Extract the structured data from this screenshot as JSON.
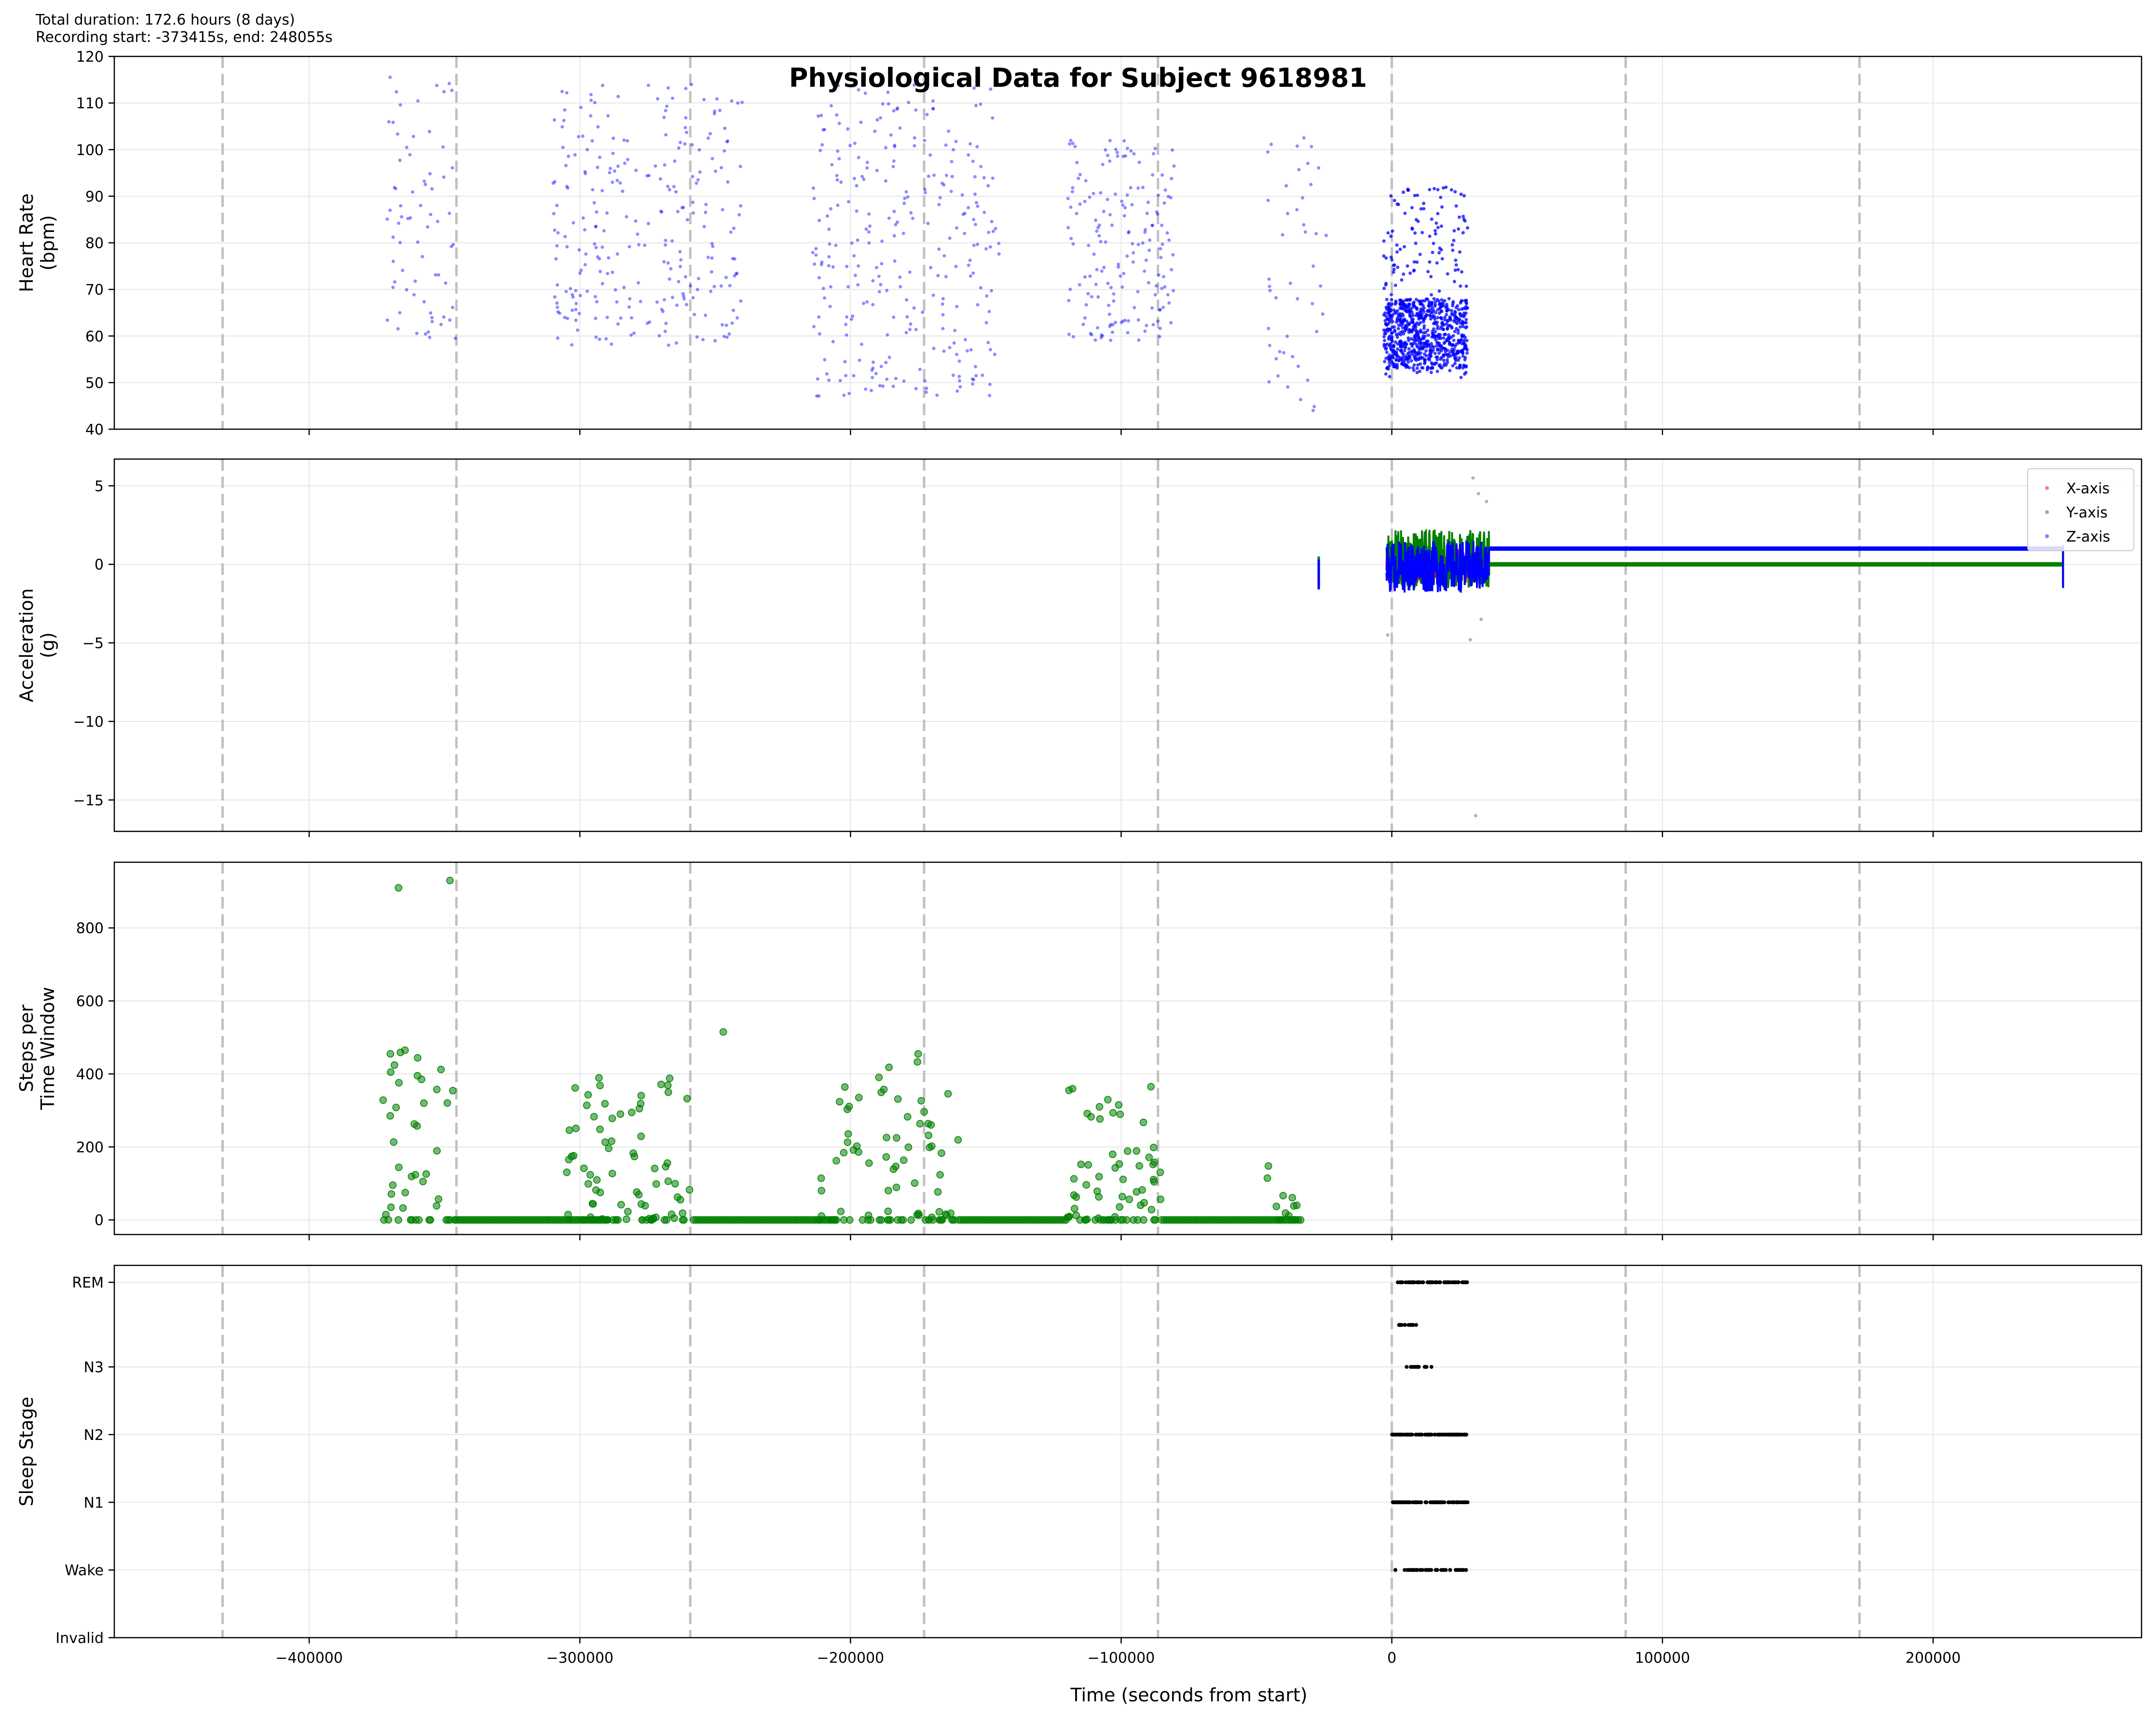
{
  "figure": {
    "title": "Physiological Data for Subject 9618981",
    "info_lines": [
      "Total duration: 172.6 hours (8 days)",
      "Recording start: -373415s, end: 248055s"
    ],
    "xlabel": "Time (seconds from start)",
    "x_ticks": [
      -400000,
      -300000,
      -200000,
      -100000,
      0,
      100000,
      200000
    ],
    "x_tick_labels": [
      "−400000",
      "−300000",
      "−200000",
      "−100000",
      "0",
      "100000",
      "200000"
    ],
    "xlim": [
      -472000,
      277000
    ],
    "day_lines": [
      -432000,
      -345600,
      -259200,
      -172800,
      -86400,
      0,
      86400,
      172800
    ],
    "colors": {
      "heart_rate": "#0000ff",
      "steps": "#008000",
      "x_axis": "#ff0000",
      "y_axis": "#008000",
      "z_axis": "#0000ff",
      "sleep": "#000000",
      "day_line": "#c0c0c0",
      "grid": "#e6e6e6"
    }
  },
  "chart_data": [
    {
      "id": "heart_rate",
      "type": "scatter",
      "ylabel": [
        "Heart Rate",
        "(bpm)"
      ],
      "ylim": [
        40,
        120
      ],
      "y_ticks": [
        40,
        50,
        60,
        70,
        80,
        90,
        100,
        110,
        120
      ],
      "y_tick_labels": [
        "40",
        "50",
        "60",
        "70",
        "80",
        "90",
        "100",
        "110",
        "120"
      ],
      "grid": true,
      "series": [
        {
          "color": "#0000ff",
          "clusters": [
            {
              "x": [
                -372000,
                -346000
              ],
              "ymin": 59,
              "ymax": 116,
              "n": 70
            },
            {
              "x": [
                -310000,
                -240000
              ],
              "ymin": 58,
              "ymax": 114,
              "n": 260
            },
            {
              "x": [
                -214000,
                -145000
              ],
              "ymin": 47,
              "ymax": 114,
              "n": 280
            },
            {
              "x": [
                -120000,
                -80000
              ],
              "ymin": 59,
              "ymax": 102,
              "n": 170
            },
            {
              "x": [
                -46000,
                -24000
              ],
              "ymin": 43,
              "ymax": 103,
              "n": 45
            },
            {
              "x": [
                -3000,
                28000
              ],
              "ymin": 51,
              "ymax": 92,
              "n": 900,
              "core": [
                53,
                68
              ]
            }
          ]
        }
      ]
    },
    {
      "id": "acceleration",
      "type": "line",
      "ylabel": [
        "Acceleration",
        "(g)"
      ],
      "ylim": [
        -17,
        6.7
      ],
      "y_ticks": [
        -15,
        -10,
        -5,
        0,
        5
      ],
      "y_tick_labels": [
        "−15",
        "−10",
        "−5",
        "0",
        "5"
      ],
      "grid": true,
      "legend": "top-right",
      "series": [
        {
          "name": "X-axis",
          "color": "#ff0000",
          "segments": [
            {
              "x": [
                -27000,
                -27000
              ],
              "y": [
                -1.5,
                0.5
              ]
            },
            {
              "x": [
                -2000,
                36000
              ],
              "y": [
                -1.2,
                1.0
              ]
            },
            {
              "x": [
                36000,
                248000
              ],
              "y": [
                0.0,
                0.0
              ]
            }
          ]
        },
        {
          "name": "Y-axis",
          "color": "#008000",
          "segments": [
            {
              "x": [
                -27000,
                -27000
              ],
              "y": [
                -1.2,
                0.5
              ]
            },
            {
              "x": [
                -2000,
                36000
              ],
              "y": [
                -1.5,
                2.2
              ]
            },
            {
              "x": [
                36000,
                248000
              ],
              "y": [
                0.0,
                0.0
              ]
            }
          ]
        },
        {
          "name": "Z-axis",
          "color": "#0000ff",
          "segments": [
            {
              "x": [
                -27000,
                -27000
              ],
              "y": [
                -1.6,
                0.3
              ]
            },
            {
              "x": [
                -2000,
                36000
              ],
              "y": [
                -1.8,
                1.5
              ]
            },
            {
              "x": [
                36000,
                248000
              ],
              "y": [
                1.0,
                1.0
              ]
            }
          ]
        }
      ],
      "outliers": [
        {
          "x": 30000,
          "y": 5.5
        },
        {
          "x": 32000,
          "y": 4.5
        },
        {
          "x": 35000,
          "y": 4.0
        },
        {
          "x": 29000,
          "y": -4.8
        },
        {
          "x": 33000,
          "y": -3.5
        },
        {
          "x": -1500,
          "y": -4.5
        },
        {
          "x": 31000,
          "y": -16.0
        }
      ]
    },
    {
      "id": "steps",
      "type": "scatter",
      "ylabel": [
        "Steps per",
        "Time Window"
      ],
      "ylim": [
        -40,
        980
      ],
      "y_ticks": [
        0,
        200,
        400,
        600,
        800
      ],
      "y_tick_labels": [
        "0",
        "200",
        "400",
        "600",
        "800"
      ],
      "grid": true,
      "series": [
        {
          "color": "#008000",
          "active_clusters": [
            {
              "x": [
                -373000,
                -346000
              ],
              "ymax": 470,
              "n": 45
            },
            {
              "x": [
                -305000,
                -258000
              ],
              "ymax": 390,
              "n": 90
            },
            {
              "x": [
                -212000,
                -160000
              ],
              "ymax": 460,
              "n": 90
            },
            {
              "x": [
                -120000,
                -85000
              ],
              "ymax": 370,
              "n": 70
            },
            {
              "x": [
                -46000,
                -34000
              ],
              "ymax": 160,
              "n": 14
            }
          ],
          "highlights": [
            {
              "x": -367000,
              "y": 910
            },
            {
              "x": -348000,
              "y": 930
            },
            {
              "x": -370000,
              "y": 455
            },
            {
              "x": -247000,
              "y": 515
            },
            {
              "x": -175000,
              "y": 455
            },
            {
              "x": -360000,
              "y": 395
            },
            {
              "x": -89000,
              "y": 365
            },
            {
              "x": -285000,
              "y": 290
            },
            {
              "x": -278000,
              "y": 305
            },
            {
              "x": -108000,
              "y": 310
            }
          ],
          "zero_runs": [
            [
              -346000,
              -290000
            ],
            [
              -258000,
              -205000
            ],
            [
              -160000,
              -120000
            ],
            [
              -85000,
              -33000
            ]
          ]
        }
      ]
    },
    {
      "id": "sleep",
      "type": "scatter",
      "ylabel": [
        "Sleep Stage"
      ],
      "ylim": [
        -0.25,
        5.25
      ],
      "y_ticks": [
        -0.25,
        0.75,
        1.75,
        2.75,
        3.75,
        5.0
      ],
      "y_tick_labels": [
        "Invalid",
        "Wake",
        "N1",
        "N2",
        "N3",
        "REM"
      ],
      "grid": true,
      "series": [
        {
          "color": "#000000",
          "rows": [
            {
              "y": 0.75,
              "x": [
                0,
                28000
              ],
              "n": 45
            },
            {
              "y": 1.75,
              "x": [
                0,
                28000
              ],
              "n": 70
            },
            {
              "y": 2.75,
              "x": [
                0,
                29000
              ],
              "n": 85
            },
            {
              "y": 3.75,
              "x": [
                1000,
                16000
              ],
              "n": 14
            },
            {
              "y": 4.37,
              "x": [
                2000,
                9000
              ],
              "n": 14
            },
            {
              "y": 5.0,
              "x": [
                2000,
                28000
              ],
              "n": 70
            }
          ]
        }
      ]
    }
  ]
}
